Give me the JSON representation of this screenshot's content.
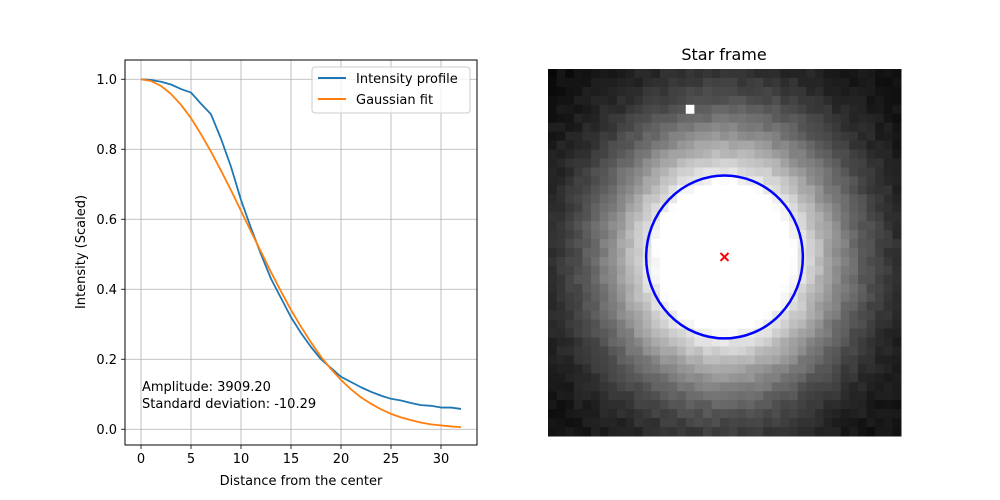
{
  "chart_data": [
    {
      "type": "line",
      "title": "",
      "xlabel": "Distance from the center",
      "ylabel": "Intensity (Scaled)",
      "xlim": [
        -1.6,
        33.6
      ],
      "ylim": [
        -0.045,
        1.055
      ],
      "xticks": [
        0,
        5,
        10,
        15,
        20,
        25,
        30
      ],
      "yticks": [
        0.0,
        0.2,
        0.4,
        0.6,
        0.8,
        1.0
      ],
      "xtick_labels": [
        "0",
        "5",
        "10",
        "15",
        "20",
        "25",
        "30"
      ],
      "ytick_labels": [
        "0.0",
        "0.2",
        "0.4",
        "0.6",
        "0.8",
        "1.0"
      ],
      "grid": true,
      "legend_position": "top-right",
      "series": [
        {
          "name": "Intensity profile",
          "color": "#1f77b4",
          "x": [
            0,
            1,
            2,
            3,
            4,
            5,
            6,
            7,
            8,
            9,
            10,
            11,
            12,
            13,
            14,
            15,
            16,
            17,
            18,
            19,
            20,
            21,
            22,
            23,
            24,
            25,
            26,
            27,
            28,
            29,
            30,
            31,
            32
          ],
          "y": [
            1.0,
            0.998,
            0.993,
            0.985,
            0.972,
            0.962,
            0.93,
            0.9,
            0.83,
            0.75,
            0.655,
            0.575,
            0.5,
            0.43,
            0.375,
            0.32,
            0.275,
            0.235,
            0.2,
            0.175,
            0.15,
            0.135,
            0.12,
            0.107,
            0.096,
            0.087,
            0.082,
            0.075,
            0.069,
            0.067,
            0.062,
            0.062,
            0.058
          ]
        },
        {
          "name": "Gaussian fit",
          "color": "#ff7f0e",
          "x": [
            0,
            1,
            2,
            3,
            4,
            5,
            6,
            7,
            8,
            9,
            10,
            11,
            12,
            13,
            14,
            15,
            16,
            17,
            18,
            19,
            20,
            21,
            22,
            23,
            24,
            25,
            26,
            27,
            28,
            29,
            30,
            31,
            32
          ],
          "y": [
            1.0,
            0.995,
            0.981,
            0.958,
            0.927,
            0.889,
            0.843,
            0.793,
            0.739,
            0.683,
            0.624,
            0.565,
            0.507,
            0.449,
            0.394,
            0.341,
            0.293,
            0.248,
            0.207,
            0.172,
            0.141,
            0.114,
            0.091,
            0.073,
            0.057,
            0.044,
            0.034,
            0.026,
            0.019,
            0.014,
            0.011,
            0.008,
            0.006
          ]
        }
      ],
      "annotations": [
        "Amplitude: 3909.20",
        "Standard deviation: -10.29"
      ]
    },
    {
      "type": "heatmap",
      "title": "Star frame",
      "xlabel": "",
      "ylabel": "",
      "grid": false,
      "colormap": "gray",
      "grid_size": [
        41,
        41
      ],
      "star_center": [
        20,
        20.5
      ],
      "star_width": 9.5,
      "hot_pixel": [
        16,
        4
      ],
      "aperture": {
        "center": [
          20,
          20.5
        ],
        "radius": 9.1,
        "color": "#0000ff"
      },
      "center_marker": {
        "symbol": "x",
        "color": "#ff0000"
      }
    }
  ]
}
